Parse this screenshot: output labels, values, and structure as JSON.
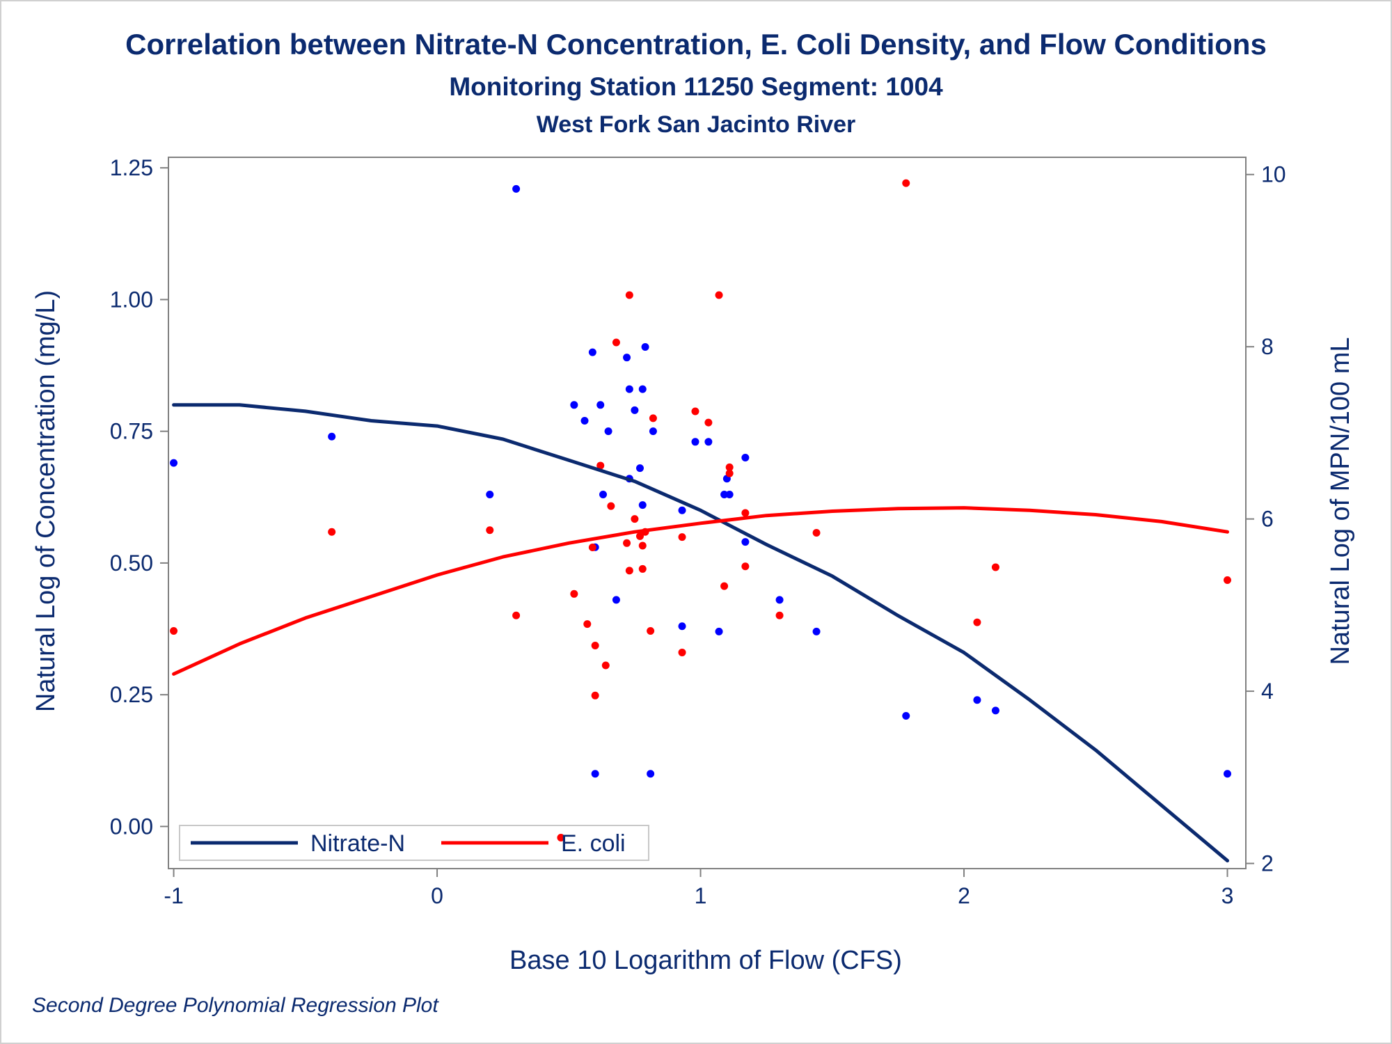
{
  "titles": {
    "title": "Correlation between Nitrate-N Concentration, E. Coli Density, and Flow Conditions",
    "subtitle": "Monitoring Station 11250 Segment: 1004",
    "subtitle2": "West Fork San Jacinto River"
  },
  "footnote": "Second Degree Polynomial Regression Plot",
  "colors": {
    "nitrate": "#0000ff",
    "ecoli": "#ff0000",
    "nitrate_fit": "#0b2a6f",
    "ecoli_fit": "#ff0000",
    "text": "#0b2a6f",
    "axis": "#808080"
  },
  "chart_data": {
    "type": "scatter",
    "xlabel": "Base 10 Logarithm of Flow (CFS)",
    "ylabel": "Natural Log of Concentration (mg/L)",
    "y2label": "Natural Log of MPN/100 mL",
    "xlim": [
      -1.02,
      3.07
    ],
    "ylim": [
      -0.08,
      1.27
    ],
    "y2lim": [
      1.94,
      10.2
    ],
    "xticks": [
      "-1",
      "0",
      "1",
      "2",
      "3"
    ],
    "xtick_values": [
      -1,
      0,
      1,
      2,
      3
    ],
    "yticks": [
      "0.00",
      "0.25",
      "0.50",
      "0.75",
      "1.00",
      "1.25"
    ],
    "ytick_values": [
      0,
      0.25,
      0.5,
      0.75,
      1.0,
      1.25
    ],
    "y2ticks": [
      "2",
      "4",
      "6",
      "8",
      "10"
    ],
    "y2tick_values": [
      2,
      4,
      6,
      8,
      10
    ],
    "legend": {
      "position": "bottom-left inside",
      "entries": [
        "Nitrate-N",
        "E. coli"
      ]
    },
    "series": [
      {
        "name": "Nitrate-N",
        "axis": "left",
        "points": [
          [
            -1.0,
            0.69
          ],
          [
            -0.4,
            0.74
          ],
          [
            0.2,
            0.63
          ],
          [
            0.3,
            1.21
          ],
          [
            0.52,
            0.8
          ],
          [
            0.56,
            0.77
          ],
          [
            0.59,
            0.9
          ],
          [
            0.6,
            0.53
          ],
          [
            0.6,
            0.1
          ],
          [
            0.62,
            0.8
          ],
          [
            0.63,
            0.63
          ],
          [
            0.65,
            0.75
          ],
          [
            0.68,
            0.43
          ],
          [
            0.72,
            0.89
          ],
          [
            0.73,
            0.83
          ],
          [
            0.73,
            0.66
          ],
          [
            0.75,
            0.79
          ],
          [
            0.77,
            0.68
          ],
          [
            0.78,
            0.61
          ],
          [
            0.78,
            0.83
          ],
          [
            0.79,
            0.91
          ],
          [
            0.81,
            0.1
          ],
          [
            0.82,
            0.75
          ],
          [
            0.93,
            0.6
          ],
          [
            0.93,
            0.38
          ],
          [
            0.98,
            0.73
          ],
          [
            1.03,
            0.73
          ],
          [
            1.07,
            0.37
          ],
          [
            1.09,
            0.63
          ],
          [
            1.1,
            0.66
          ],
          [
            1.11,
            0.63
          ],
          [
            1.17,
            0.7
          ],
          [
            1.17,
            0.54
          ],
          [
            1.3,
            0.43
          ],
          [
            1.44,
            0.37
          ],
          [
            1.78,
            0.21
          ],
          [
            2.05,
            0.24
          ],
          [
            2.12,
            0.22
          ],
          [
            3.0,
            0.1
          ]
        ]
      },
      {
        "name": "E. coli",
        "axis": "right",
        "points": [
          [
            -1.0,
            4.7
          ],
          [
            -0.4,
            5.85
          ],
          [
            0.2,
            5.87
          ],
          [
            0.3,
            4.88
          ],
          [
            0.47,
            2.3
          ],
          [
            0.52,
            5.13
          ],
          [
            0.57,
            4.78
          ],
          [
            0.59,
            5.67
          ],
          [
            0.6,
            4.53
          ],
          [
            0.6,
            3.95
          ],
          [
            0.62,
            6.62
          ],
          [
            0.64,
            4.3
          ],
          [
            0.66,
            6.15
          ],
          [
            0.68,
            8.05
          ],
          [
            0.72,
            5.72
          ],
          [
            0.73,
            8.6
          ],
          [
            0.73,
            5.4
          ],
          [
            0.75,
            6.0
          ],
          [
            0.77,
            5.8
          ],
          [
            0.78,
            5.69
          ],
          [
            0.78,
            5.42
          ],
          [
            0.79,
            5.85
          ],
          [
            0.81,
            4.7
          ],
          [
            0.82,
            7.17
          ],
          [
            0.93,
            4.45
          ],
          [
            0.93,
            5.79
          ],
          [
            0.98,
            7.25
          ],
          [
            1.03,
            7.12
          ],
          [
            1.07,
            8.6
          ],
          [
            1.09,
            5.22
          ],
          [
            1.11,
            6.6
          ],
          [
            1.11,
            6.53
          ],
          [
            1.17,
            6.07
          ],
          [
            1.17,
            5.45
          ],
          [
            1.3,
            4.88
          ],
          [
            1.44,
            5.84
          ],
          [
            1.78,
            9.9
          ],
          [
            2.05,
            4.8
          ],
          [
            2.12,
            5.44
          ],
          [
            3.0,
            5.29
          ]
        ]
      }
    ],
    "fits": [
      {
        "name": "Nitrate-N",
        "axis": "left",
        "x": [
          -1.0,
          -0.75,
          -0.5,
          -0.25,
          0.0,
          0.25,
          0.5,
          0.75,
          1.0,
          1.25,
          1.5,
          1.75,
          2.0,
          2.25,
          2.5,
          2.75,
          3.0
        ],
        "y": [
          0.8,
          0.8,
          0.788,
          0.77,
          0.76,
          0.735,
          0.695,
          0.655,
          0.6,
          0.535,
          0.475,
          0.4,
          0.33,
          0.24,
          0.145,
          0.04,
          -0.065
        ]
      },
      {
        "name": "E. coli",
        "axis": "right",
        "x": [
          -1.0,
          -0.75,
          -0.5,
          -0.25,
          0.0,
          0.25,
          0.5,
          0.75,
          1.0,
          1.25,
          1.5,
          1.75,
          2.0,
          2.25,
          2.5,
          2.75,
          3.0
        ],
        "y": [
          4.2,
          4.55,
          4.85,
          5.1,
          5.35,
          5.56,
          5.72,
          5.85,
          5.95,
          6.04,
          6.09,
          6.12,
          6.13,
          6.1,
          6.05,
          5.97,
          5.85
        ]
      }
    ]
  }
}
